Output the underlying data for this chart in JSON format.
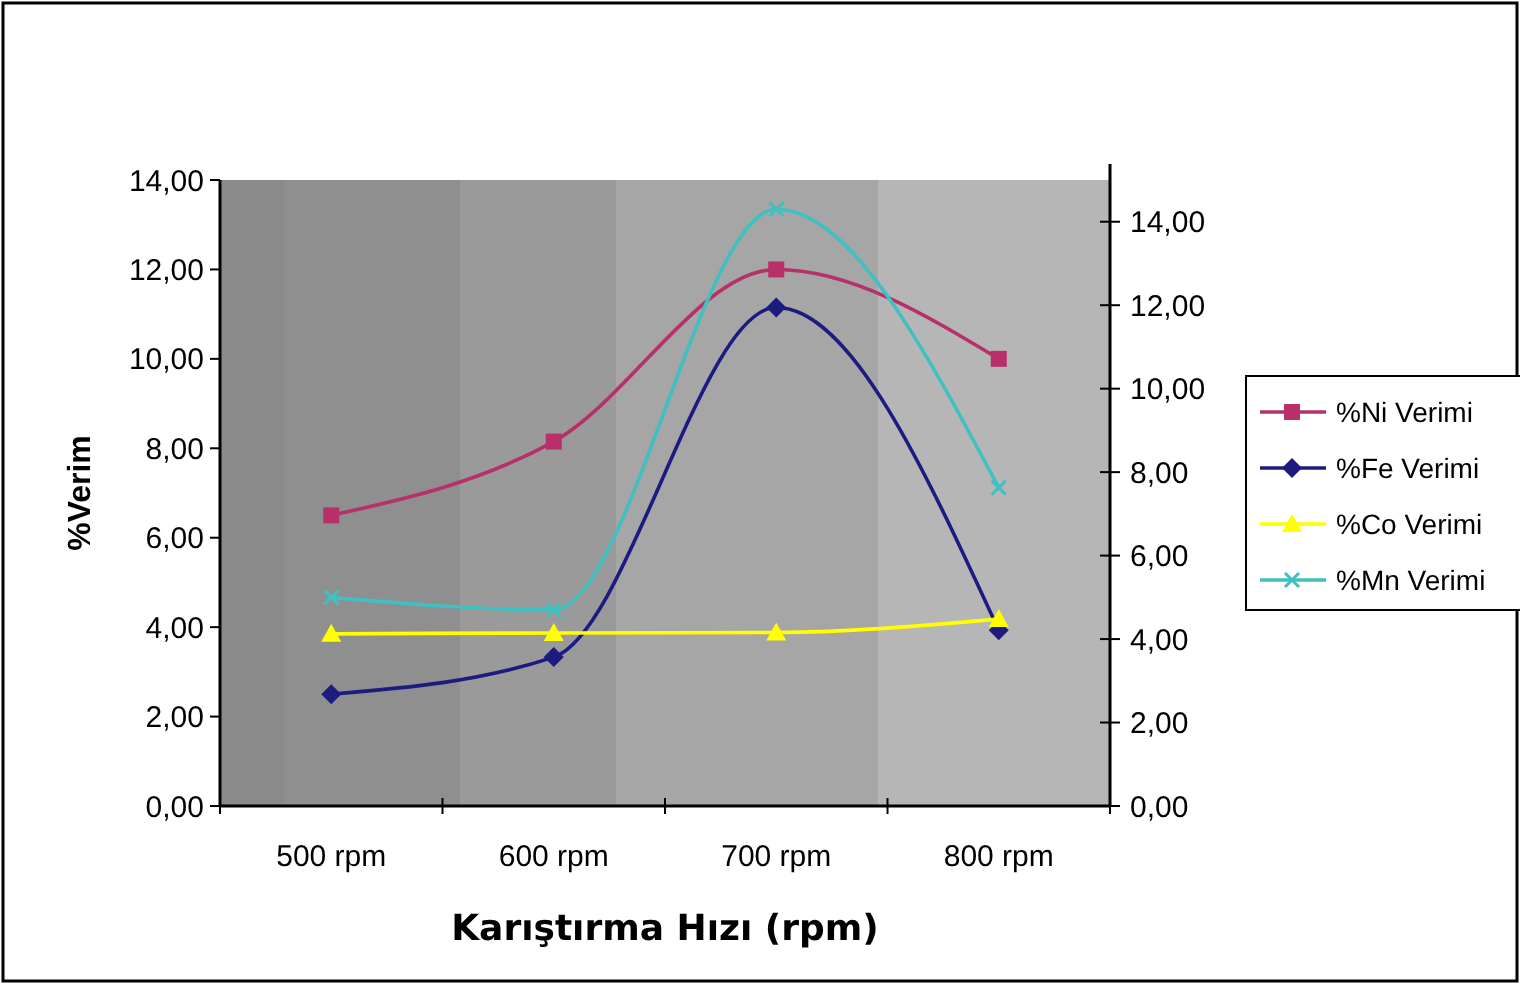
{
  "chart_data": {
    "type": "line",
    "xlabel": "Karıştırma Hızı (rpm)",
    "ylabel": "%Verim",
    "categories": [
      "500 rpm",
      "600 rpm",
      "700 rpm",
      "800 rpm"
    ],
    "ylim": [
      0,
      14
    ],
    "yticks": [
      {
        "value": 0,
        "label": "0,00"
      },
      {
        "value": 2,
        "label": "2,00"
      },
      {
        "value": 4,
        "label": "4,00"
      },
      {
        "value": 6,
        "label": "6,00"
      },
      {
        "value": 8,
        "label": "8,00"
      },
      {
        "value": 10,
        "label": "10,00"
      },
      {
        "value": 12,
        "label": "12,00"
      },
      {
        "value": 14,
        "label": "14,00"
      }
    ],
    "y2lim": [
      0,
      15
    ],
    "y2ticks": [
      {
        "value": 0,
        "label": "0,00"
      },
      {
        "value": 2,
        "label": "2,00"
      },
      {
        "value": 4,
        "label": "4,00"
      },
      {
        "value": 6,
        "label": "6,00"
      },
      {
        "value": 8,
        "label": "8,00"
      },
      {
        "value": 10,
        "label": "10,00"
      },
      {
        "value": 12,
        "label": "12,00"
      },
      {
        "value": 14,
        "label": "14,00"
      }
    ],
    "grid": false,
    "legend": "right",
    "series": [
      {
        "name": "%Ni Verimi",
        "color": "#b8306a",
        "marker": "square",
        "values": [
          6.5,
          8.15,
          12.0,
          10.0
        ]
      },
      {
        "name": "%Fe Verimi",
        "color": "#1c1c80",
        "marker": "diamond",
        "values": [
          2.5,
          3.33,
          11.15,
          3.93
        ]
      },
      {
        "name": "%Co Verimi",
        "color": "#ffff00",
        "marker": "triangle",
        "values": [
          3.85,
          3.87,
          3.88,
          4.18
        ]
      },
      {
        "name": "%Mn Verimi",
        "color": "#40c0c0",
        "marker": "cross",
        "axis": "y2",
        "values": [
          5.0,
          4.7,
          14.3,
          7.63
        ]
      }
    ]
  }
}
